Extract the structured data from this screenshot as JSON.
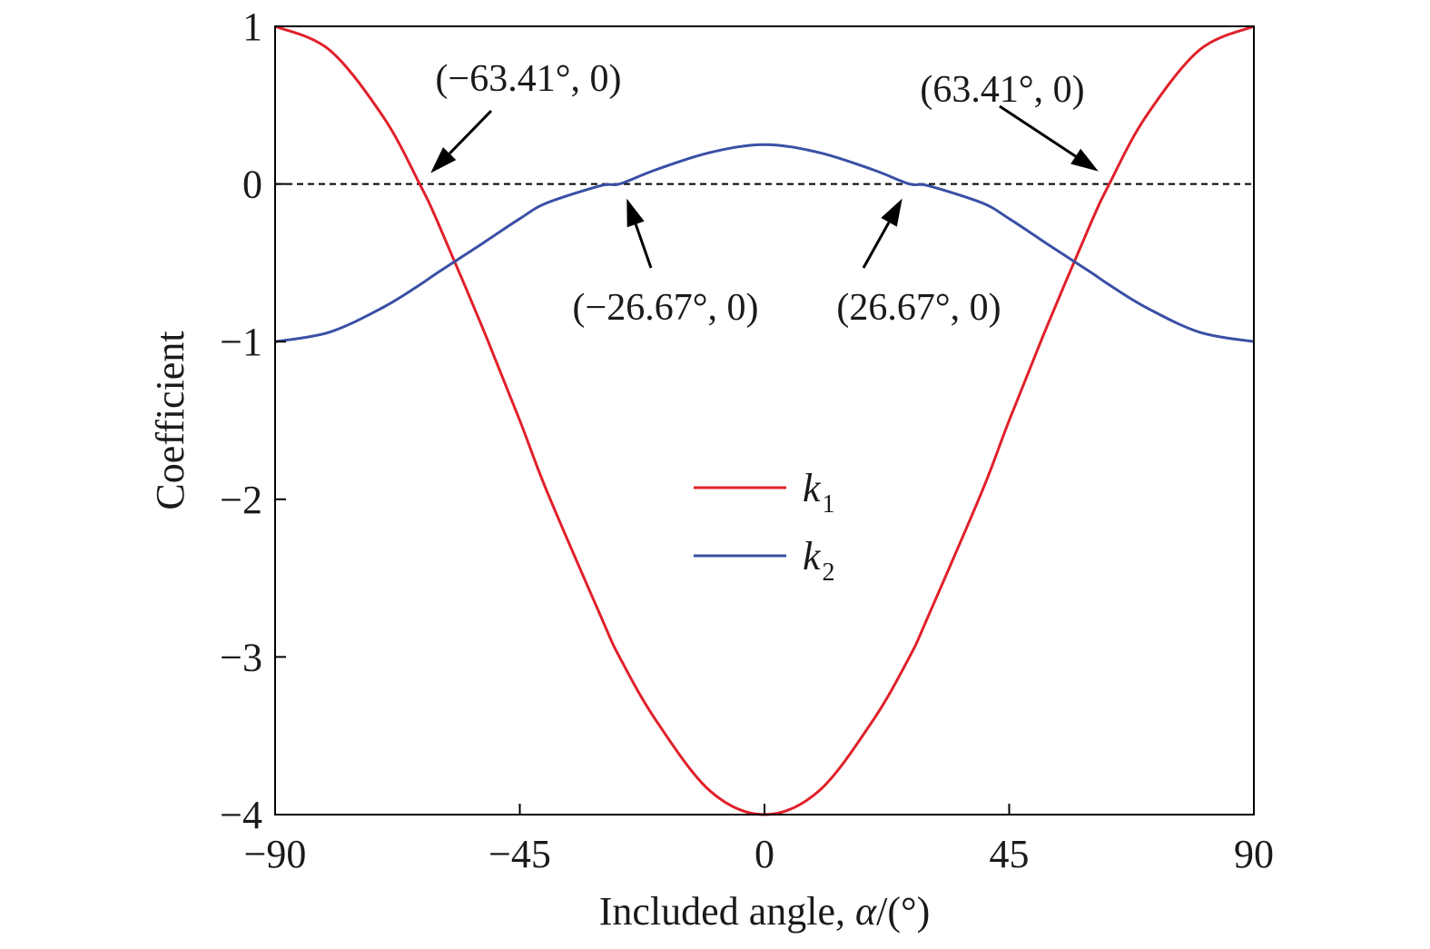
{
  "chart_data": {
    "type": "line",
    "xlabel_prefix": "Included angle, ",
    "xlabel_symbol": "α",
    "xlabel_suffix": "/(°)",
    "ylabel": "Coefficient",
    "xlim": [
      -90,
      90
    ],
    "ylim": [
      -4,
      1
    ],
    "x_ticks": [
      -90,
      -45,
      0,
      45,
      90
    ],
    "x_tick_labels": [
      "−90",
      "−45",
      "0",
      "45",
      "90"
    ],
    "y_ticks": [
      1,
      0,
      -1,
      -2,
      -3,
      -4
    ],
    "y_tick_labels": [
      "1",
      "0",
      "−1",
      "−2",
      "−3",
      "−4"
    ],
    "grid": false,
    "legend_position": "center",
    "x": [
      -90,
      -80,
      -70,
      -63.41,
      -60,
      -52,
      -45,
      -40,
      -30,
      -26.67,
      -20,
      -10,
      0,
      10,
      20,
      26.67,
      30,
      40,
      45,
      52,
      60,
      63.41,
      70,
      80,
      90
    ],
    "series": [
      {
        "name": "k1",
        "name_base": "k",
        "name_sub": "1",
        "color": "#e0202a",
        "values": [
          1.0,
          0.85,
          0.42,
          0.0,
          -0.25,
          -0.9,
          -1.5,
          -1.95,
          -2.75,
          -3.0,
          -3.4,
          -3.85,
          -4.0,
          -3.85,
          -3.4,
          -3.0,
          -2.75,
          -1.95,
          -1.5,
          -0.9,
          -0.25,
          0.0,
          0.42,
          0.85,
          1.0
        ]
      },
      {
        "name": "k2",
        "name_base": "k",
        "name_sub": "2",
        "color": "#3a4fa5",
        "values": [
          -1.0,
          -0.94,
          -0.78,
          -0.64,
          -0.56,
          -0.38,
          -0.22,
          -0.12,
          -0.01,
          0.0,
          0.09,
          0.2,
          0.25,
          0.2,
          0.09,
          0.0,
          -0.01,
          -0.12,
          -0.22,
          -0.38,
          -0.56,
          -0.64,
          -0.78,
          -0.94,
          -1.0
        ]
      }
    ],
    "reference_line": {
      "y": 0,
      "style": "dashed",
      "color": "#000000"
    },
    "annotations": [
      {
        "text": "(−63.41°, 0)",
        "x": -63.41,
        "y": 0
      },
      {
        "text": "(63.41°, 0)",
        "x": 63.41,
        "y": 0
      },
      {
        "text": "(−26.67°, 0)",
        "x": -26.67,
        "y": 0
      },
      {
        "text": "(26.67°, 0)",
        "x": 26.67,
        "y": 0
      }
    ]
  }
}
